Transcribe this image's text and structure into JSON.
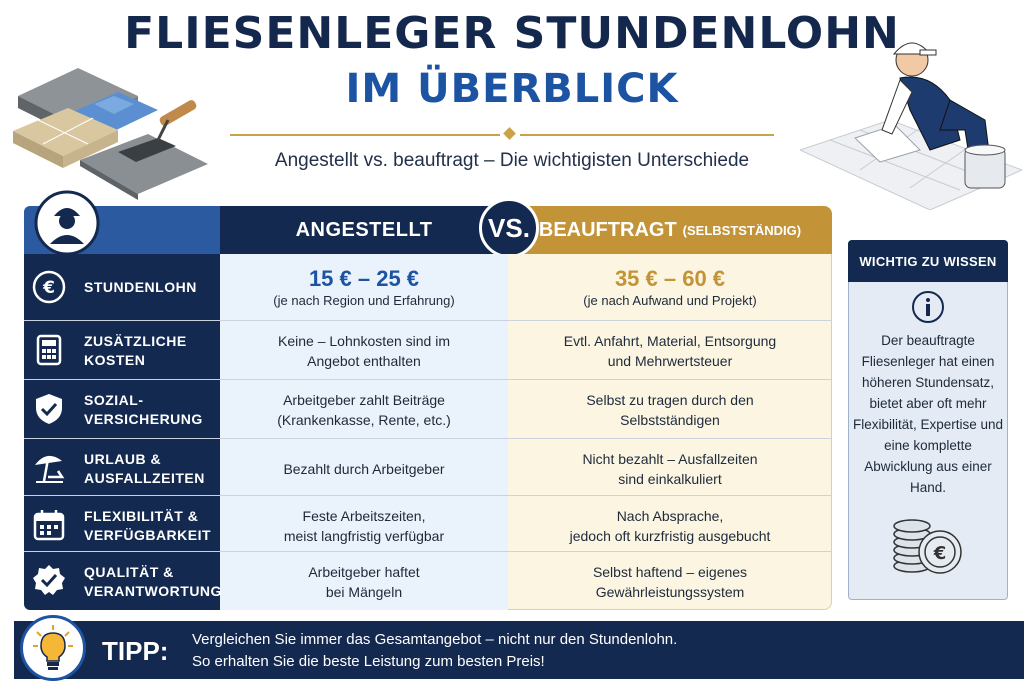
{
  "header": {
    "title_line1": "FLIESENLEGER STUNDENLOHN",
    "title_line2": "IM ÜBERBLICK",
    "subtitle": "Angestellt vs. beauftragt – Die wichtigisten Unterschiede"
  },
  "table": {
    "col_angestellt": "ANGESTELLT",
    "vs": "VS.",
    "col_beauftragt": "BEAUFTRAGT",
    "col_beauftragt_suffix": "(SELBSTSTÄNDIG)",
    "rows": [
      {
        "icon": "euro-icon",
        "label": "STUNDENLOHN",
        "a_main": "15 € – 25 €",
        "a_note": "(je nach Region und Erfahrung)",
        "b_main": "35 € – 60 €",
        "b_note": "(je nach Aufwand und Projekt)"
      },
      {
        "icon": "calculator-icon",
        "label": "ZUSÄTZLICHE\nKOSTEN",
        "a_text": "Keine – Lohnkosten sind im\nAngebot enthalten",
        "b_text": "Evtl. Anfahrt, Material, Entsorgung\nund Mehrwertsteuer"
      },
      {
        "icon": "shield-check-icon",
        "label": "SOZIAL-\nVERSICHERUNG",
        "a_text": "Arbeitgeber zahlt Beiträge\n(Krankenkasse, Rente, etc.)",
        "b_text": "Selbst zu tragen durch den\nSelbstständigen"
      },
      {
        "icon": "beach-umbrella-icon",
        "label": "URLAUB &\nAUSFALLZEITEN",
        "a_text": "Bezahlt durch Arbeitgeber",
        "b_text": "Nicht bezahlt – Ausfallzeiten\nsind einkalkuliert"
      },
      {
        "icon": "calendar-icon",
        "label": "FLEXIBILITÄT &\nVERFÜGBARKEIT",
        "a_text": "Feste Arbeitszeiten,\nmeist langfristig verfügbar",
        "b_text": "Nach Absprache,\njedoch oft kurzfristig ausgebucht"
      },
      {
        "icon": "quality-badge-icon",
        "label": "QUALITÄT &\nVERANTWORTUNG",
        "a_text": "Arbeitgeber haftet\nbei Mängeln",
        "b_text": "Selbst haftend – eigenes\nGewährleistungssystem"
      }
    ]
  },
  "side_panel": {
    "heading": "WICHTIG ZU WISSEN",
    "text": "Der beauftragte Fliesenleger hat einen höheren Stundensatz, bietet aber oft mehr Flexibilität, Expertise und eine komplette Abwicklung aus einer Hand."
  },
  "tip": {
    "label": "TIPP:",
    "line1": "Vergleichen Sie immer das Gesamtangebot – nicht nur den Stundenlohn.",
    "line2": "So erhalten Sie die beste Leistung zum besten Preis!"
  },
  "colors": {
    "navy": "#13294f",
    "blue": "#1c54a3",
    "gold": "#c39437",
    "light_blue": "#eaf2fb",
    "light_gold": "#fbf5e2"
  }
}
